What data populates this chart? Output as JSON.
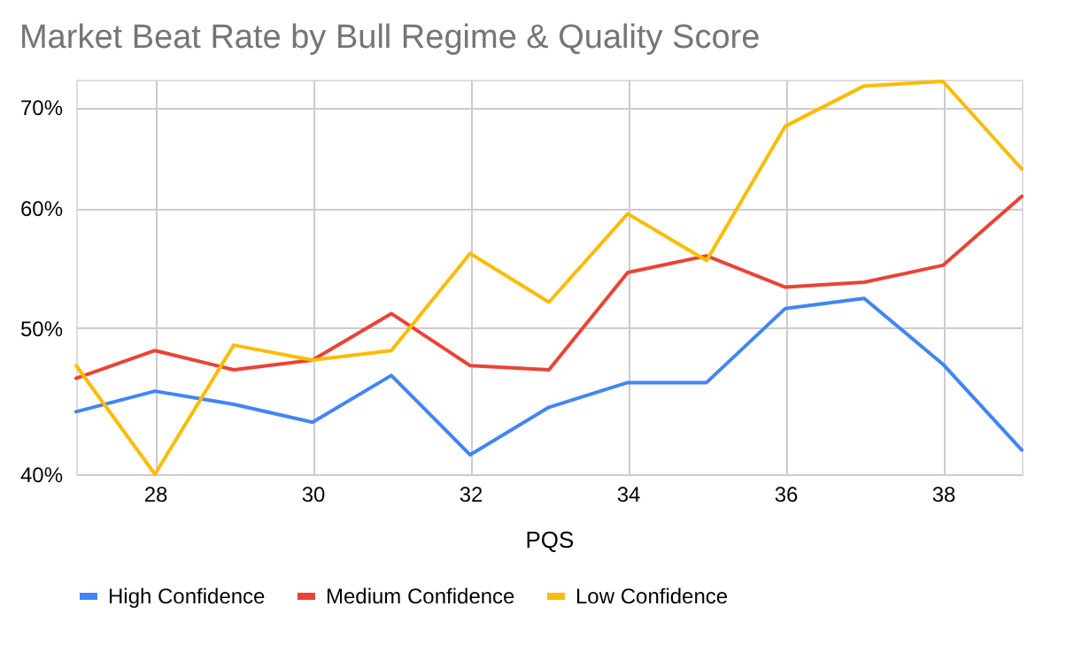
{
  "chart_data": {
    "type": "line",
    "title": "Market Beat Rate by Bull Regime & Quality Score",
    "xlabel": "PQS",
    "x": [
      27,
      28,
      29,
      30,
      31,
      32,
      33,
      34,
      35,
      36,
      37,
      38,
      39
    ],
    "series": [
      {
        "name": "High Confidence",
        "color": "#4285f4",
        "values": [
          44.0,
          45.4,
          44.5,
          43.3,
          46.5,
          41.2,
          44.3,
          46.0,
          46.0,
          51.5,
          52.3,
          47.3,
          41.5
        ]
      },
      {
        "name": "Medium Confidence",
        "color": "#ea4335",
        "values": [
          46.3,
          48.3,
          46.9,
          47.6,
          51.1,
          47.2,
          46.9,
          54.4,
          55.8,
          53.2,
          53.6,
          55.0,
          61.1
        ]
      },
      {
        "name": "Low Confidence",
        "color": "#fbbc04",
        "values": [
          47.2,
          40.0,
          48.7,
          47.6,
          48.3,
          56.0,
          52.0,
          59.5,
          55.4,
          68.0,
          72.3,
          72.8,
          63.7
        ]
      }
    ],
    "xlim": [
      27,
      39
    ],
    "xticks": [
      28,
      30,
      32,
      34,
      36,
      38
    ],
    "ylim": [
      40,
      73
    ],
    "yticks": [
      {
        "value": 40,
        "label": "40%"
      },
      {
        "value": 50,
        "label": "50%"
      },
      {
        "value": 60,
        "label": "60%"
      },
      {
        "value": 70,
        "label": "70%"
      }
    ],
    "log": "y",
    "grid": true,
    "legend": "bottom",
    "marker": "none",
    "line_style": "solid"
  }
}
